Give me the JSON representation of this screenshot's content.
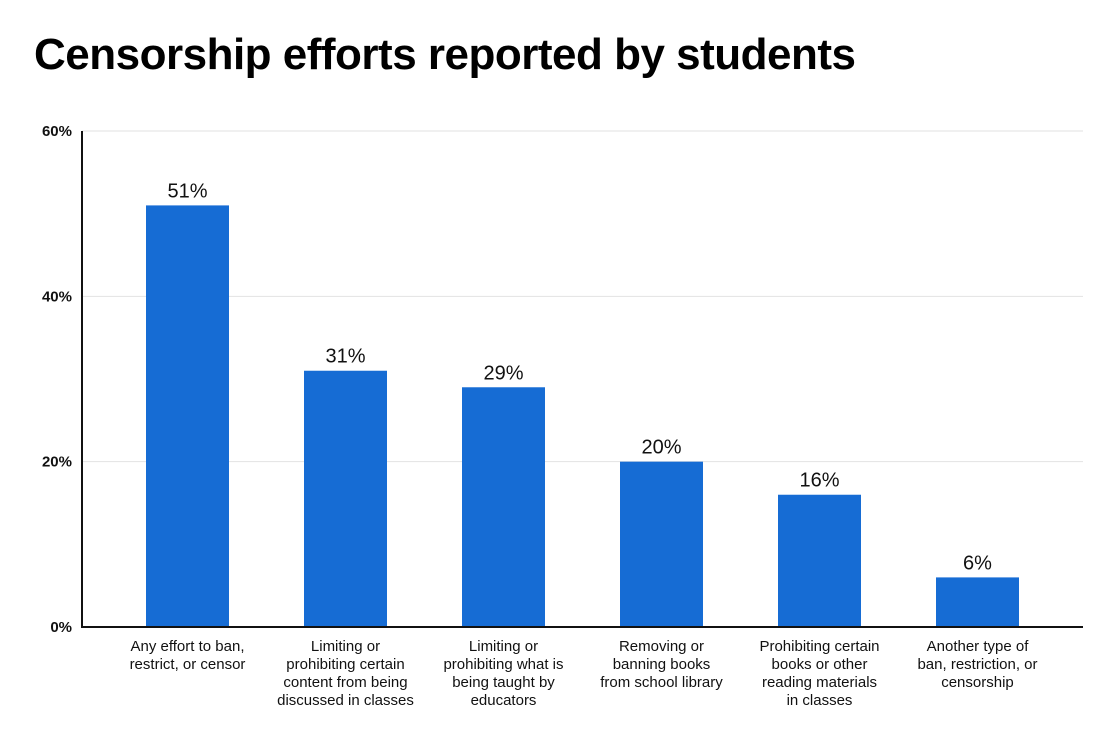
{
  "chart_data": {
    "type": "bar",
    "title": "Censorship efforts reported by students",
    "xlabel": "",
    "ylabel": "",
    "ylim": [
      0,
      60
    ],
    "yticks": [
      0,
      20,
      40,
      60
    ],
    "ytick_labels": [
      "0%",
      "20%",
      "40%",
      "60%"
    ],
    "grid": true,
    "categories": [
      [
        "Any effort to ban,",
        "restrict, or censor"
      ],
      [
        "Limiting or",
        "prohibiting certain",
        "content from being",
        "discussed in classes"
      ],
      [
        "Limiting or",
        "prohibiting what is",
        "being taught by",
        "educators"
      ],
      [
        "Removing or",
        "banning books",
        "from school library"
      ],
      [
        "Prohibiting certain",
        "books or other",
        "reading materials",
        "in classes"
      ],
      [
        "Another type of",
        "ban, restriction, or",
        "censorship"
      ]
    ],
    "values": [
      51,
      31,
      29,
      20,
      16,
      6
    ],
    "data_labels": [
      "51%",
      "31%",
      "29%",
      "20%",
      "16%",
      "6%"
    ],
    "bar_color": "#166cd4",
    "grid_color": "#e2e2e2"
  }
}
